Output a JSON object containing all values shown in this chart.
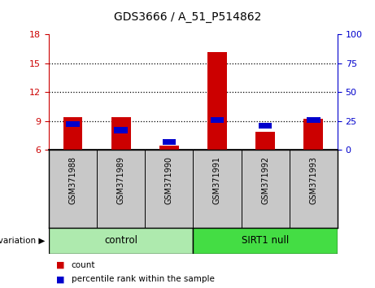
{
  "title": "GDS3666 / A_51_P514862",
  "samples": [
    "GSM371988",
    "GSM371989",
    "GSM371990",
    "GSM371991",
    "GSM371992",
    "GSM371993"
  ],
  "count_values": [
    9.4,
    9.4,
    6.4,
    16.2,
    7.9,
    9.2
  ],
  "percentile_values": [
    22,
    17,
    7,
    26,
    21,
    26
  ],
  "count_baseline": 6.0,
  "ylim_left": [
    6,
    18
  ],
  "ylim_right": [
    0,
    100
  ],
  "yticks_left": [
    6,
    9,
    12,
    15,
    18
  ],
  "yticks_right": [
    0,
    25,
    50,
    75,
    100
  ],
  "bar_width": 0.4,
  "blue_bar_width": 0.28,
  "red_color": "#CC0000",
  "blue_color": "#0000CC",
  "bg_label": "#C8C8C8",
  "control_color": "#AEEAAE",
  "sirt1_color": "#44DD44",
  "legend_count": "count",
  "legend_percentile": "percentile rank within the sample",
  "group_ranges": [
    [
      0,
      2,
      "control"
    ],
    [
      3,
      5,
      "SIRT1 null"
    ]
  ]
}
